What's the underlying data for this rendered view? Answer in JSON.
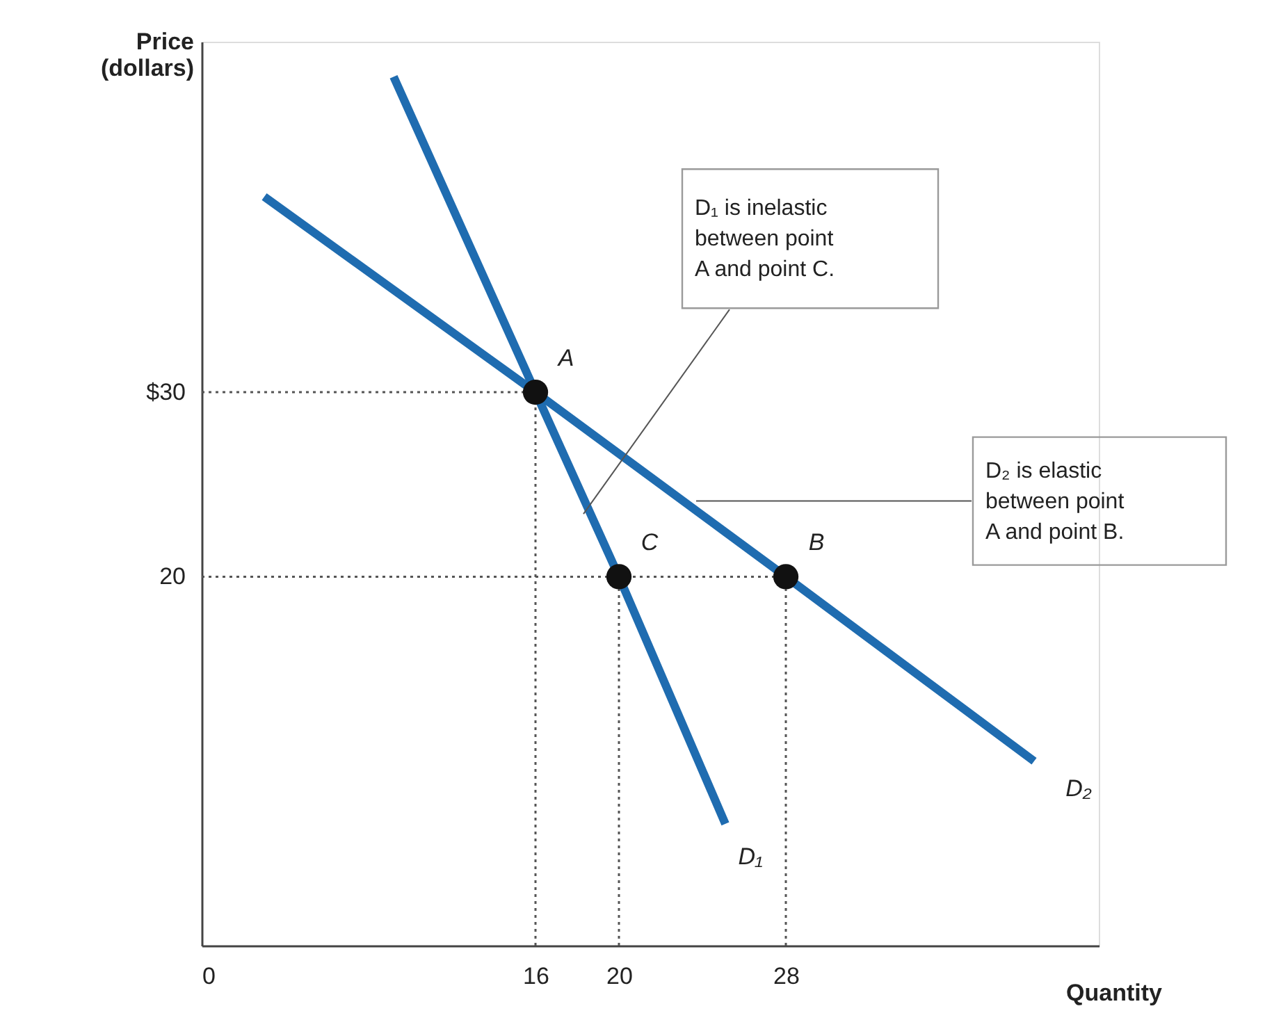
{
  "chart_data": {
    "type": "line",
    "xlabel": "Quantity",
    "ylabel": "Price\n(dollars)",
    "xlim": [
      0,
      43
    ],
    "ylim": [
      0,
      49
    ],
    "xticks": [
      0,
      16,
      20,
      28
    ],
    "yticks": [
      {
        "value": 30,
        "label": "$30"
      },
      20
    ],
    "grid": false,
    "series": [
      {
        "name": "D₁",
        "line_style": "solid",
        "color": "#1f6cb0",
        "x": [
          9.2,
          16,
          20,
          25.1
        ],
        "values": [
          47.1,
          30,
          20,
          6.6
        ]
      },
      {
        "name": "D₂",
        "line_style": "solid",
        "color": "#1f6cb0",
        "x": [
          3,
          16,
          28,
          39.9
        ],
        "values": [
          40.6,
          30,
          20,
          10
        ]
      },
      {
        "type": "line",
        "color": "#555555",
        "line_style": "dotted",
        "x": [
          0,
          16
        ],
        "values": [
          30,
          30
        ]
      },
      {
        "type": "line",
        "color": "#555555",
        "line_style": "dotted",
        "x": [
          0,
          28
        ],
        "values": [
          20,
          20
        ]
      },
      {
        "type": "line",
        "color": "#555555",
        "line_style": "dotted",
        "x": [
          16,
          16
        ],
        "values": [
          0,
          30
        ]
      },
      {
        "type": "line",
        "color": "#555555",
        "line_style": "dotted",
        "x": [
          20,
          20
        ],
        "values": [
          0,
          20
        ]
      },
      {
        "type": "line",
        "color": "#555555",
        "line_style": "dotted",
        "x": [
          28,
          28
        ],
        "values": [
          0,
          20
        ]
      },
      {
        "type": "scatter",
        "color": "#111111",
        "marker": "circle",
        "x": [
          16,
          20,
          28
        ],
        "values": [
          30,
          20,
          20
        ]
      }
    ],
    "annotations": [
      {
        "text": "A",
        "x": 16,
        "y": 30
      },
      {
        "text": "C",
        "x": 20,
        "y": 20
      },
      {
        "text": "B",
        "x": 28,
        "y": 20
      },
      {
        "text": "D₁ is inelastic\nbetween point\nA and point C.",
        "x": 18.3,
        "y": 23.4
      },
      {
        "text": "D₂ is elastic\nbetween point\nA and point B.",
        "x": 23.7,
        "y": 24.1
      }
    ]
  }
}
